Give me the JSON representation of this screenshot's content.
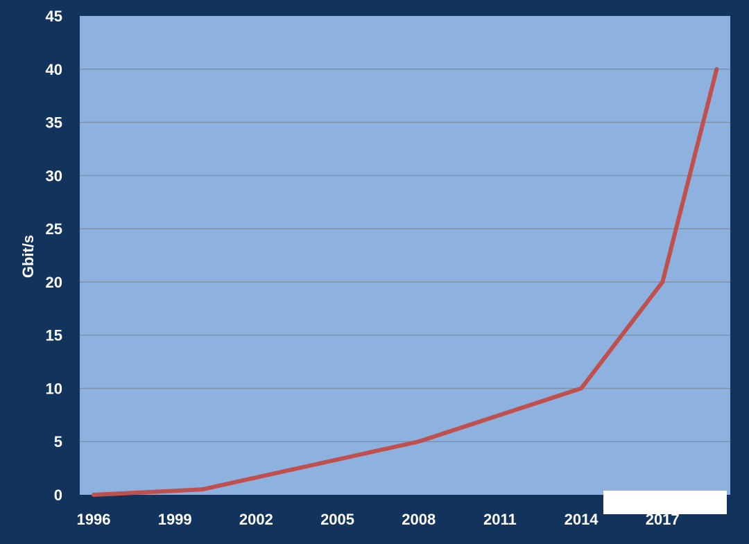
{
  "chart_data": {
    "type": "line",
    "title": "",
    "xlabel": "",
    "ylabel": "Gbit/s",
    "x_ticks": [
      "1996",
      "1999",
      "2002",
      "2005",
      "2008",
      "2011",
      "2014",
      "2017"
    ],
    "y_ticks": [
      "0",
      "5",
      "10",
      "15",
      "20",
      "25",
      "30",
      "35",
      "40",
      "45"
    ],
    "xlim": [
      1996,
      2020
    ],
    "ylim": [
      0,
      45
    ],
    "grid": "horizontal",
    "legend": "none",
    "series": [
      {
        "x": [
          1996,
          2000,
          2008,
          2014,
          2017,
          2019
        ],
        "y": [
          0,
          0.5,
          5,
          10,
          20,
          40
        ]
      }
    ],
    "colors": {
      "background": "#12335b",
      "plot_area": "#8eb2e0",
      "line": "#c0504d",
      "grid": "#7f90a8",
      "text": "#ffffff"
    }
  }
}
